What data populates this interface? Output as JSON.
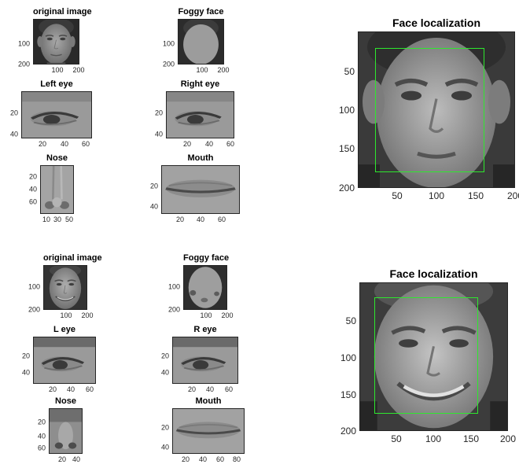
{
  "figure_1": {
    "original": {
      "title": "original image",
      "yticks": [
        "100",
        "200"
      ],
      "xticks": [
        "100",
        "200"
      ]
    },
    "foggy": {
      "title": "Foggy face",
      "yticks": [
        "100",
        "200"
      ],
      "xticks": [
        "100",
        "200"
      ]
    },
    "left_eye": {
      "title": "Left eye",
      "yticks": [
        "20",
        "40"
      ],
      "xticks": [
        "20",
        "40",
        "60"
      ]
    },
    "right_eye": {
      "title": "Right eye",
      "yticks": [
        "20",
        "40"
      ],
      "xticks": [
        "20",
        "40",
        "60"
      ]
    },
    "nose": {
      "title": "Nose",
      "yticks": [
        "20",
        "40",
        "60"
      ],
      "xticks": [
        "10",
        "30",
        "50"
      ]
    },
    "mouth": {
      "title": "Mouth",
      "yticks": [
        "20",
        "40"
      ],
      "xticks": [
        "20",
        "40",
        "60"
      ]
    },
    "face_localization": {
      "title": "Face localization",
      "yticks": [
        "50",
        "100",
        "150",
        "200"
      ],
      "xticks": [
        "50",
        "100",
        "150",
        "200"
      ]
    }
  },
  "figure_2": {
    "original": {
      "title": "original image",
      "yticks": [
        "100",
        "200"
      ],
      "xticks": [
        "100",
        "200"
      ]
    },
    "foggy": {
      "title": "Foggy face",
      "yticks": [
        "100",
        "200"
      ],
      "xticks": [
        "100",
        "200"
      ]
    },
    "l_eye": {
      "title": "L eye",
      "yticks": [
        "20",
        "40"
      ],
      "xticks": [
        "20",
        "40",
        "60"
      ]
    },
    "r_eye": {
      "title": "R eye",
      "yticks": [
        "20",
        "40"
      ],
      "xticks": [
        "20",
        "40",
        "60"
      ]
    },
    "nose": {
      "title": "Nose",
      "yticks": [
        "20",
        "40",
        "60"
      ],
      "xticks": [
        "20",
        "40"
      ]
    },
    "mouth": {
      "title": "Mouth",
      "yticks": [
        "20",
        "40"
      ],
      "xticks": [
        "20",
        "40",
        "60",
        "80"
      ]
    },
    "face_localization": {
      "title": "Face localization",
      "yticks": [
        "50",
        "100",
        "150",
        "200"
      ],
      "xticks": [
        "50",
        "100",
        "150",
        "200"
      ]
    }
  },
  "colors": {
    "box": "#2ee82e",
    "axis": "#262626",
    "skin": "#9a9a9a",
    "background": "#2e2e2e"
  }
}
